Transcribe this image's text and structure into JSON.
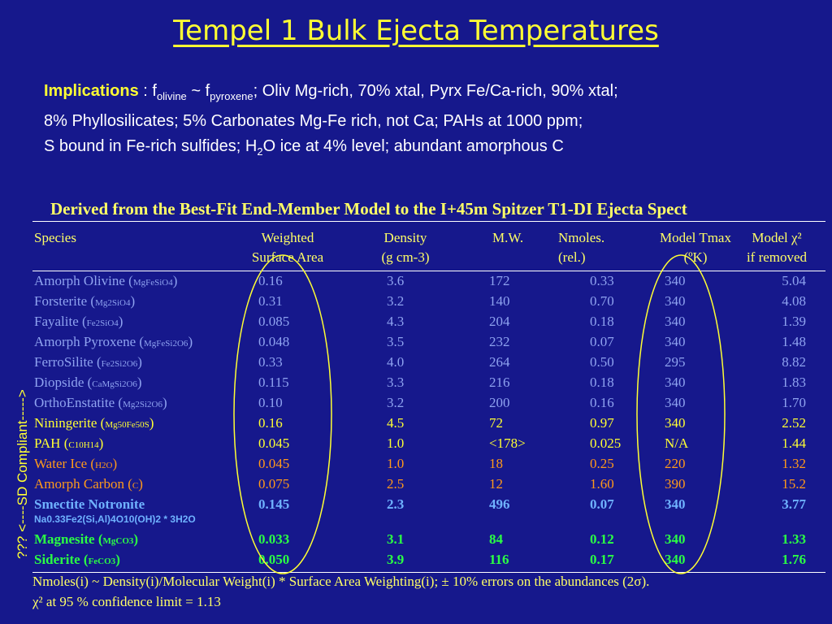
{
  "title": "Tempel 1 Bulk Ejecta Temperatures",
  "implications": {
    "lead": "Implications",
    "line1_a": " : f",
    "line1_sub1": "olivine",
    "line1_b": " ~ f",
    "line1_sub2": "pyroxene",
    "line1_c": "; Oliv Mg-rich, 70% xtal, Pyrx Fe/Ca-rich, 90% xtal;",
    "line2": "8% Phyllosilicates;  5% Carbonates Mg-Fe rich, not Ca;  PAHs at 1000 ppm;",
    "line3_a": "S bound in Fe-rich sulfides;  H",
    "line3_sub": "2",
    "line3_b": "O ice at 4% level;   abundant amorphous C"
  },
  "table_title": "Derived from the Best-Fit  End-Member Model to the I+45m Spitzer T1-DI Ejecta Spect",
  "headers": {
    "species": "Species",
    "weighted_1": "Weighted",
    "weighted_2": "Surface Area",
    "density_1": "Density",
    "density_2": "(g cm-3)",
    "mw": "M.W.",
    "nmoles_1": "Nmoles.",
    "nmoles_2": "(rel.)",
    "tmax_1": "Model Tmax",
    "tmax_2": "(ºK)",
    "model_1": "Model χ²",
    "model_2": "if removed"
  },
  "rows": [
    {
      "name": "Amorph Olivine (",
      "formula": "MgFeSiO4",
      "close": ")",
      "weighted": "0.16",
      "density": "3.6",
      "mw": "172",
      "nmoles": "0.33",
      "tmax": "340",
      "chi2": "5.04"
    },
    {
      "name": "Forsterite (",
      "formula": "Mg2SiO4",
      "close": ")",
      "weighted": "0.31",
      "density": "3.2",
      "mw": "140",
      "nmoles": "0.70",
      "tmax": "340",
      "chi2": "4.08"
    },
    {
      "name": "Fayalite (",
      "formula": "Fe2SiO4",
      "close": ")",
      "weighted": "0.085",
      "density": "4.3",
      "mw": "204",
      "nmoles": "0.18",
      "tmax": "340",
      "chi2": "1.39"
    },
    {
      "name": "Amorph Pyroxene (",
      "formula": "MgFeSi2O6",
      "close": ")",
      "weighted": "0.048",
      "density": "3.5",
      "mw": "232",
      "nmoles": "0.07",
      "tmax": "340",
      "chi2": "1.48"
    },
    {
      "name": "FerroSilite (",
      "formula": "Fe2Si2O6",
      "close": ")",
      "weighted": "0.33",
      "density": "4.0",
      "mw": "264",
      "nmoles": "0.50",
      "tmax": "295",
      "chi2": "8.82"
    },
    {
      "name": "Diopside (",
      "formula": "CaMgSi2O6",
      "close": ")",
      "weighted": "0.115",
      "density": "3.3",
      "mw": "216",
      "nmoles": "0.18",
      "tmax": "340",
      "chi2": "1.83"
    },
    {
      "name": "OrthoEnstatite (",
      "formula": "Mg2Si2O6",
      "close": ")",
      "weighted": "0.10",
      "density": "3.2",
      "mw": "200",
      "nmoles": "0.16",
      "tmax": "340",
      "chi2": "1.70"
    },
    {
      "name": "Niningerite (",
      "formula": "Mg50Fe50S",
      "close": ")",
      "weighted": "0.16",
      "density": "4.5",
      "mw": "72",
      "nmoles": "0.97",
      "tmax": "340",
      "chi2": "2.52"
    },
    {
      "name": "PAH  (",
      "formula": "C10H14",
      "close": ")",
      "weighted": "0.045",
      "density": "1.0",
      "mw": "<178>",
      "nmoles": "0.025",
      "tmax": "N/A",
      "chi2": "1.44"
    },
    {
      "name": "Water Ice (",
      "formula": "H2O",
      "close": ")",
      "weighted": "0.045",
      "density": "1.0",
      "mw": "18",
      "nmoles": "0.25",
      "tmax": "220",
      "chi2": "1.32"
    },
    {
      "name": "Amorph Carbon (",
      "formula": "C",
      "close": ")",
      "weighted": "0.075",
      "density": "2.5",
      "mw": "12",
      "nmoles": "1.60",
      "tmax": "390",
      "chi2": "15.2"
    },
    {
      "name": "Smectite Notronite",
      "formula": "",
      "close": "",
      "weighted": "0.145",
      "density": "2.3",
      "mw": "496",
      "nmoles": "0.07",
      "tmax": "340",
      "chi2": "3.77"
    },
    {
      "name": "Magnesite (",
      "formula": "MgCO3",
      "close": ")",
      "weighted": "0.033",
      "density": "3.1",
      "mw": "84",
      "nmoles": "0.12",
      "tmax": "340",
      "chi2": "1.33"
    },
    {
      "name": "Siderite (",
      "formula": "FeCO3",
      "close": ")",
      "weighted": "0.050",
      "density": "3.9",
      "mw": "116",
      "nmoles": "0.17",
      "tmax": "340",
      "chi2": "1.76"
    }
  ],
  "smectite_formula": "Na0.33Fe2(Si,Al)4O10(OH)2 * 3H2O",
  "footer_1": "Nmoles(i) ~ Density(i)/Molecular Weight(i) * Surface Area Weighting(i); ± 10% errors on the abundances (2σ).",
  "footer_2": "χ² at 95 % confidence limit = 1.13",
  "side_label": "???     <----SD Compliant----->",
  "colors": {
    "background": "#16188c",
    "title": "#ffff33",
    "olivine_group": "#8fa3f0",
    "pah": "#ffff33",
    "water_carbon": "#ff9a1a",
    "smectite": "#6fb2ff",
    "carbonates": "#2bff44",
    "ellipse": "#ffff33"
  }
}
